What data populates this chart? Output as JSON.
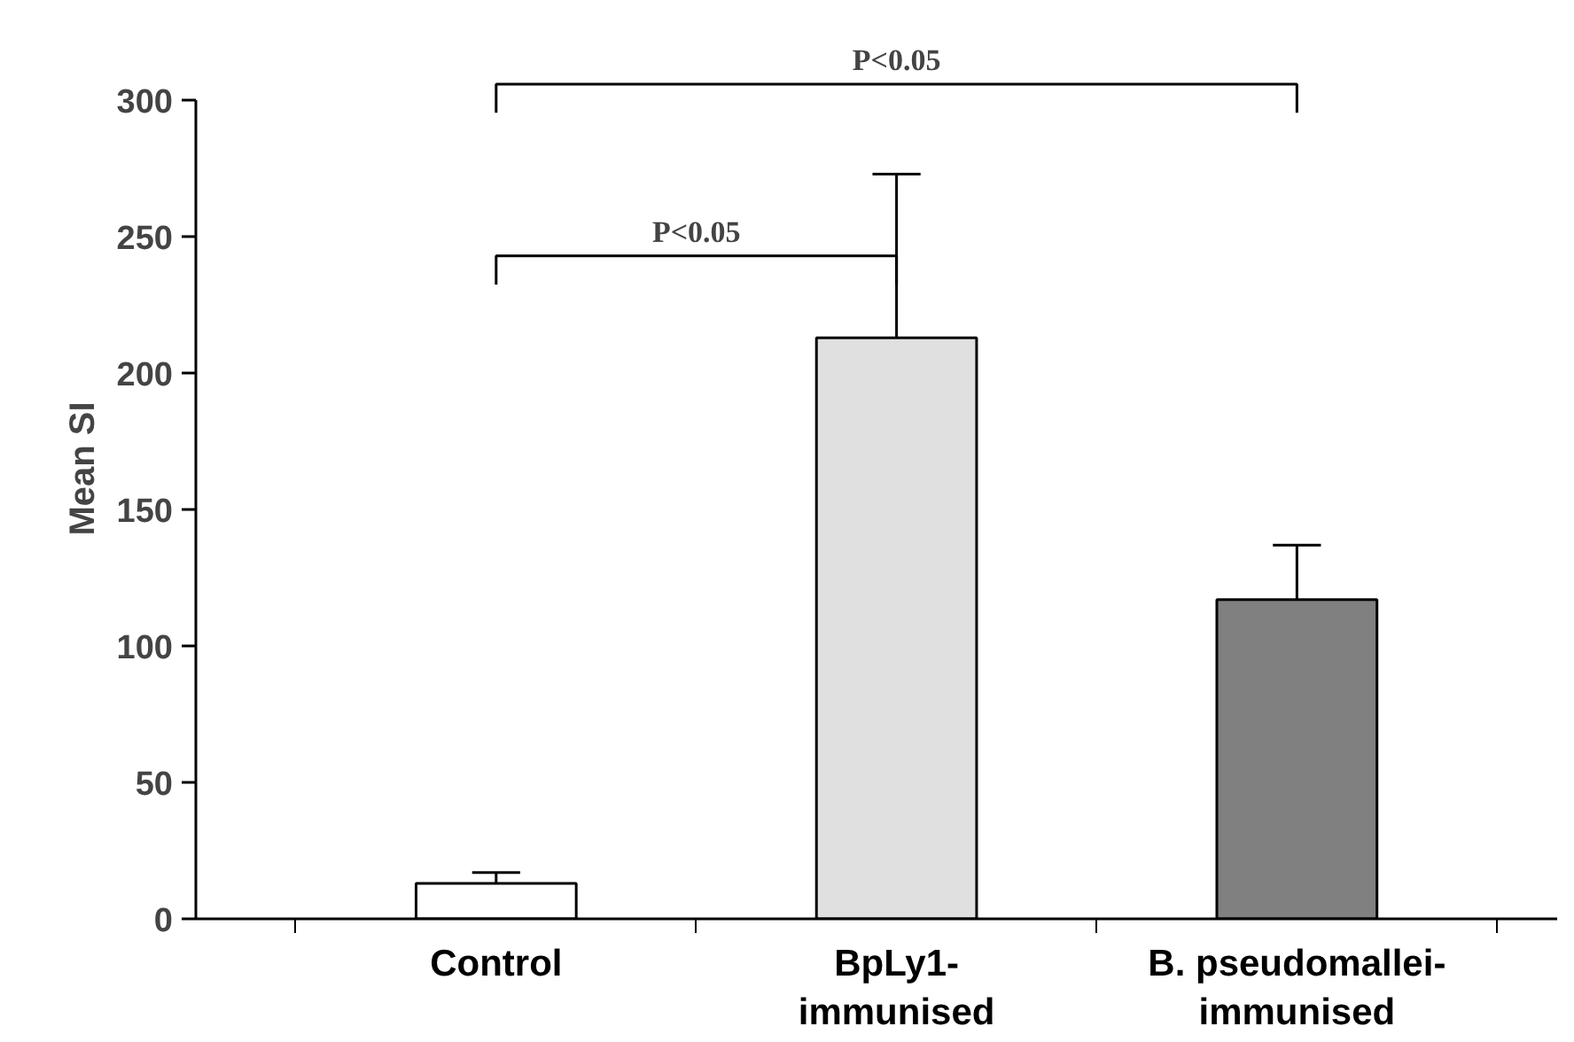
{
  "chart_data": {
    "type": "bar",
    "ylabel": "Mean SI",
    "categories": [
      "Control",
      "BpLy1-immunised",
      "B. pseudomallei-immunised"
    ],
    "values": [
      13,
      213,
      117
    ],
    "colors": [
      "#ffffff",
      "#e0e0e0",
      "#808080"
    ],
    "errors": [
      [
        13,
        17
      ],
      [
        213,
        273
      ],
      [
        117,
        137
      ]
    ],
    "ylim": [
      0,
      300
    ],
    "yticks": [
      0,
      50,
      100,
      150,
      200,
      250,
      300
    ],
    "grid": false,
    "annotations": [
      "P<0.05",
      "P<0.05"
    ]
  }
}
